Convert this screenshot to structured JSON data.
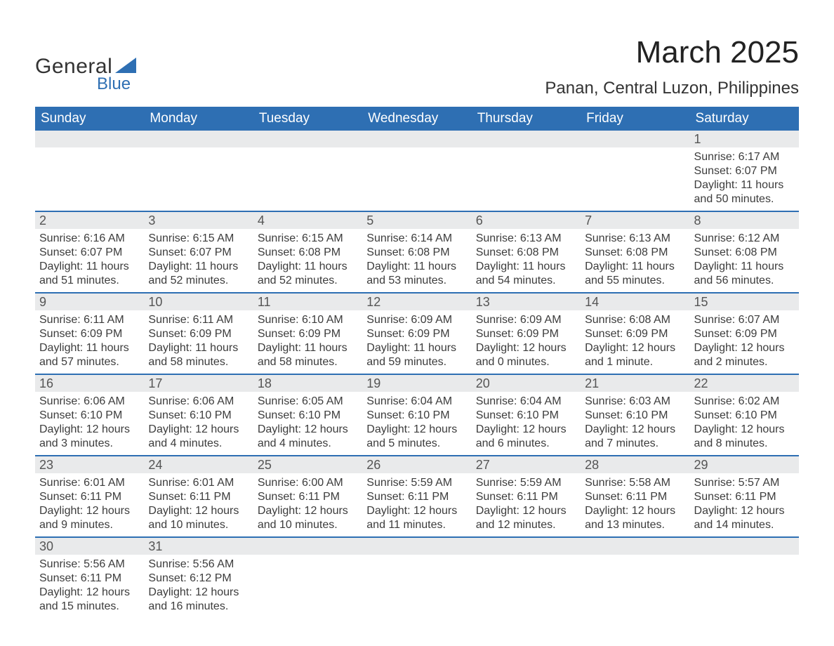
{
  "colors": {
    "header_bg": "#2e6fb3",
    "header_text": "#ffffff",
    "daynum_bg": "#e9eaeb",
    "daynum_text": "#555555",
    "body_text": "#3c3c3c",
    "row_divider": "#2e6fb3",
    "logo_accent": "#2e6fb3",
    "page_bg": "#ffffff"
  },
  "typography": {
    "font_family": "Arial, Helvetica, sans-serif",
    "month_title_size_pt": 33,
    "subtitle_size_pt": 18,
    "weekday_header_size_pt": 14,
    "daynum_size_pt": 14,
    "body_size_pt": 12
  },
  "logo": {
    "line1": "General",
    "line2": "Blue"
  },
  "title": "March 2025",
  "subtitle": "Panan, Central Luzon, Philippines",
  "labels": {
    "sunrise_prefix": "Sunrise: ",
    "sunset_prefix": "Sunset: ",
    "daylight_prefix": "Daylight: "
  },
  "weekdays": [
    "Sunday",
    "Monday",
    "Tuesday",
    "Wednesday",
    "Thursday",
    "Friday",
    "Saturday"
  ],
  "weeks": [
    [
      {
        "blank": true
      },
      {
        "blank": true
      },
      {
        "blank": true
      },
      {
        "blank": true
      },
      {
        "blank": true
      },
      {
        "blank": true
      },
      {
        "day": "1",
        "sunrise": "6:17 AM",
        "sunset": "6:07 PM",
        "daylight": "11 hours and 50 minutes."
      }
    ],
    [
      {
        "day": "2",
        "sunrise": "6:16 AM",
        "sunset": "6:07 PM",
        "daylight": "11 hours and 51 minutes."
      },
      {
        "day": "3",
        "sunrise": "6:15 AM",
        "sunset": "6:07 PM",
        "daylight": "11 hours and 52 minutes."
      },
      {
        "day": "4",
        "sunrise": "6:15 AM",
        "sunset": "6:08 PM",
        "daylight": "11 hours and 52 minutes."
      },
      {
        "day": "5",
        "sunrise": "6:14 AM",
        "sunset": "6:08 PM",
        "daylight": "11 hours and 53 minutes."
      },
      {
        "day": "6",
        "sunrise": "6:13 AM",
        "sunset": "6:08 PM",
        "daylight": "11 hours and 54 minutes."
      },
      {
        "day": "7",
        "sunrise": "6:13 AM",
        "sunset": "6:08 PM",
        "daylight": "11 hours and 55 minutes."
      },
      {
        "day": "8",
        "sunrise": "6:12 AM",
        "sunset": "6:08 PM",
        "daylight": "11 hours and 56 minutes."
      }
    ],
    [
      {
        "day": "9",
        "sunrise": "6:11 AM",
        "sunset": "6:09 PM",
        "daylight": "11 hours and 57 minutes."
      },
      {
        "day": "10",
        "sunrise": "6:11 AM",
        "sunset": "6:09 PM",
        "daylight": "11 hours and 58 minutes."
      },
      {
        "day": "11",
        "sunrise": "6:10 AM",
        "sunset": "6:09 PM",
        "daylight": "11 hours and 58 minutes."
      },
      {
        "day": "12",
        "sunrise": "6:09 AM",
        "sunset": "6:09 PM",
        "daylight": "11 hours and 59 minutes."
      },
      {
        "day": "13",
        "sunrise": "6:09 AM",
        "sunset": "6:09 PM",
        "daylight": "12 hours and 0 minutes."
      },
      {
        "day": "14",
        "sunrise": "6:08 AM",
        "sunset": "6:09 PM",
        "daylight": "12 hours and 1 minute."
      },
      {
        "day": "15",
        "sunrise": "6:07 AM",
        "sunset": "6:09 PM",
        "daylight": "12 hours and 2 minutes."
      }
    ],
    [
      {
        "day": "16",
        "sunrise": "6:06 AM",
        "sunset": "6:10 PM",
        "daylight": "12 hours and 3 minutes."
      },
      {
        "day": "17",
        "sunrise": "6:06 AM",
        "sunset": "6:10 PM",
        "daylight": "12 hours and 4 minutes."
      },
      {
        "day": "18",
        "sunrise": "6:05 AM",
        "sunset": "6:10 PM",
        "daylight": "12 hours and 4 minutes."
      },
      {
        "day": "19",
        "sunrise": "6:04 AM",
        "sunset": "6:10 PM",
        "daylight": "12 hours and 5 minutes."
      },
      {
        "day": "20",
        "sunrise": "6:04 AM",
        "sunset": "6:10 PM",
        "daylight": "12 hours and 6 minutes."
      },
      {
        "day": "21",
        "sunrise": "6:03 AM",
        "sunset": "6:10 PM",
        "daylight": "12 hours and 7 minutes."
      },
      {
        "day": "22",
        "sunrise": "6:02 AM",
        "sunset": "6:10 PM",
        "daylight": "12 hours and 8 minutes."
      }
    ],
    [
      {
        "day": "23",
        "sunrise": "6:01 AM",
        "sunset": "6:11 PM",
        "daylight": "12 hours and 9 minutes."
      },
      {
        "day": "24",
        "sunrise": "6:01 AM",
        "sunset": "6:11 PM",
        "daylight": "12 hours and 10 minutes."
      },
      {
        "day": "25",
        "sunrise": "6:00 AM",
        "sunset": "6:11 PM",
        "daylight": "12 hours and 10 minutes."
      },
      {
        "day": "26",
        "sunrise": "5:59 AM",
        "sunset": "6:11 PM",
        "daylight": "12 hours and 11 minutes."
      },
      {
        "day": "27",
        "sunrise": "5:59 AM",
        "sunset": "6:11 PM",
        "daylight": "12 hours and 12 minutes."
      },
      {
        "day": "28",
        "sunrise": "5:58 AM",
        "sunset": "6:11 PM",
        "daylight": "12 hours and 13 minutes."
      },
      {
        "day": "29",
        "sunrise": "5:57 AM",
        "sunset": "6:11 PM",
        "daylight": "12 hours and 14 minutes."
      }
    ],
    [
      {
        "day": "30",
        "sunrise": "5:56 AM",
        "sunset": "6:11 PM",
        "daylight": "12 hours and 15 minutes."
      },
      {
        "day": "31",
        "sunrise": "5:56 AM",
        "sunset": "6:12 PM",
        "daylight": "12 hours and 16 minutes."
      },
      {
        "blank": true
      },
      {
        "blank": true
      },
      {
        "blank": true
      },
      {
        "blank": true
      },
      {
        "blank": true
      }
    ]
  ]
}
